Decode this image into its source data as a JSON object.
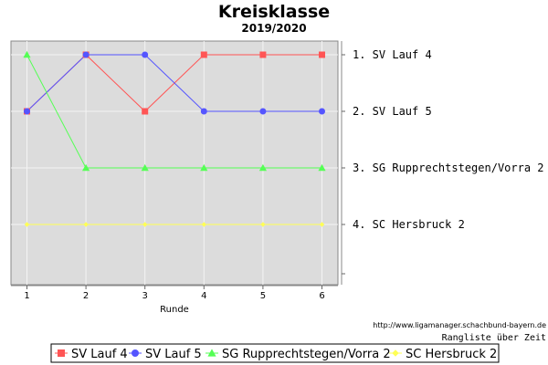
{
  "chart_data": {
    "type": "line",
    "title": "Kreisklasse",
    "subtitle": "2019/2020",
    "xlabel": "Runde",
    "x": [
      1,
      2,
      3,
      4,
      5,
      6
    ],
    "y_scale": "rank, 1 at top",
    "ylim": [
      1,
      5
    ],
    "grid": true,
    "rank_labels": [
      "1. SV Lauf 4",
      "2. SV Lauf 5",
      "3. SG Rupprechtstegen/Vorra 2",
      "4. SC Hersbruck 2"
    ],
    "series": [
      {
        "name": "SV Lauf 4",
        "values": [
          2,
          1,
          2,
          1,
          1,
          1
        ],
        "color": "#ff5555",
        "marker": "square"
      },
      {
        "name": "SV Lauf 5",
        "values": [
          2,
          1,
          1,
          2,
          2,
          2
        ],
        "color": "#5555ff",
        "marker": "circle"
      },
      {
        "name": "SG Rupprechtstegen/Vorra 2",
        "values": [
          1,
          3,
          3,
          3,
          3,
          3
        ],
        "color": "#55ff55",
        "marker": "triangle"
      },
      {
        "name": "SC Hersbruck 2",
        "values": [
          4,
          4,
          4,
          4,
          4,
          4
        ],
        "color": "#ffff55",
        "marker": "diamond"
      }
    ],
    "source_url": "http://www.ligamanager.schachbund-bayern.de",
    "caption": "Rangliste über Zeit",
    "legend_position": "bottom"
  }
}
